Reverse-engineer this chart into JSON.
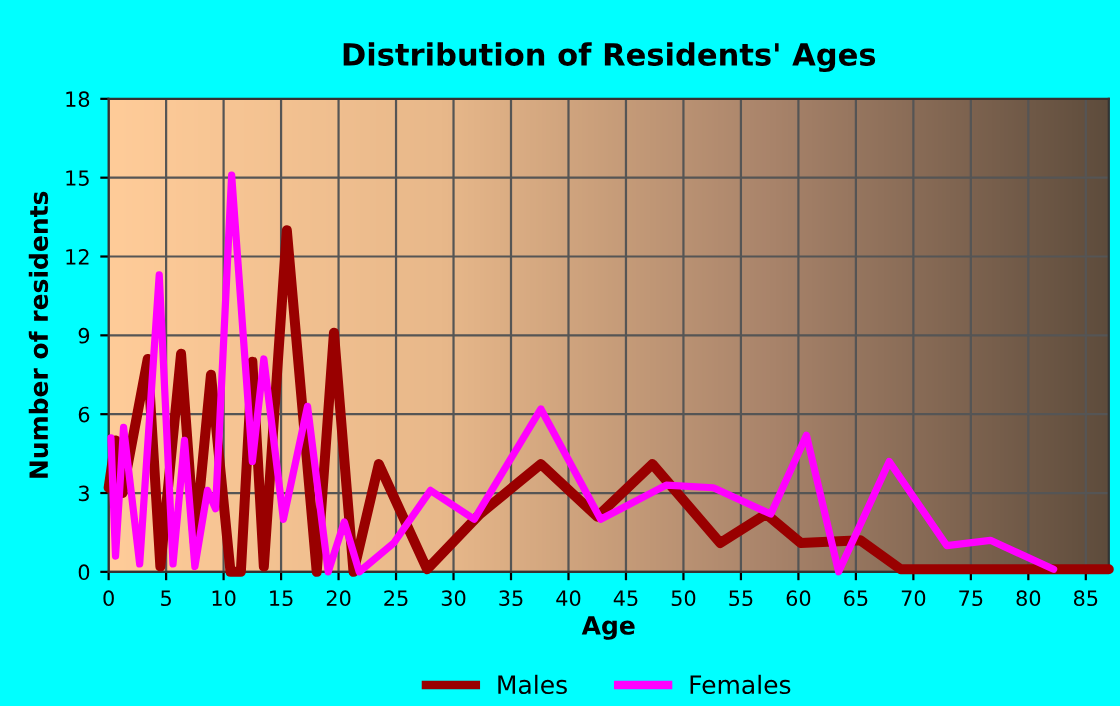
{
  "chart_data": {
    "type": "line",
    "title": "Distribution of Residents' Ages",
    "xlabel": "Age",
    "ylabel": "Number of residents",
    "xlim": [
      0,
      87
    ],
    "xticks": [
      0,
      5,
      10,
      15,
      20,
      25,
      30,
      35,
      40,
      45,
      50,
      55,
      60,
      65,
      70,
      75,
      80,
      85
    ],
    "ylim": [
      0,
      18
    ],
    "yticks": [
      0,
      3,
      6,
      9,
      12,
      15,
      18
    ],
    "grid": true,
    "legend": "bottom",
    "line_style": "solid",
    "marker": "none",
    "series": [
      {
        "name": "Males",
        "color": "#990000",
        "x": [
          0,
          0.6,
          1.2,
          3.4,
          4.5,
          6.3,
          7.5,
          8.9,
          10.6,
          11.5,
          12.5,
          13.5,
          15.5,
          18.1,
          19.6,
          21.3,
          23.5,
          27.7,
          32.3,
          37.6,
          42.5,
          47.3,
          53.2,
          57.2,
          60.2,
          65.4,
          68.9,
          75,
          87
        ],
        "values": [
          3.2,
          5,
          3,
          8.1,
          0.2,
          8.3,
          1.1,
          7.5,
          0,
          0,
          8,
          0.2,
          13,
          0,
          9.1,
          0,
          4.1,
          0.1,
          2.2,
          4.1,
          2.1,
          4.1,
          1.1,
          2.2,
          1.1,
          1.2,
          0.1,
          0.1,
          0.1
        ]
      },
      {
        "name": "Females",
        "color": "#ff00ff",
        "x": [
          0.2,
          0.6,
          1.3,
          2.7,
          4.4,
          5.6,
          6.6,
          7.5,
          8.6,
          9.3,
          10.7,
          12.5,
          13.5,
          15.2,
          17.3,
          19.1,
          20.5,
          21.8,
          24.8,
          28,
          31.8,
          37.6,
          42.8,
          48.5,
          52.6,
          57.6,
          60.7,
          63.5,
          67.9,
          72.9,
          76.7,
          82.2
        ],
        "values": [
          5.1,
          0.6,
          5.5,
          0.3,
          11.3,
          0.3,
          5,
          0.2,
          3.1,
          2.4,
          15.1,
          4.2,
          8.1,
          2,
          6.3,
          0,
          1.9,
          0,
          1.1,
          3.1,
          2,
          6.2,
          2,
          3.3,
          3.2,
          2.2,
          5.2,
          0,
          4.2,
          1,
          1.2,
          0.1
        ]
      }
    ]
  }
}
